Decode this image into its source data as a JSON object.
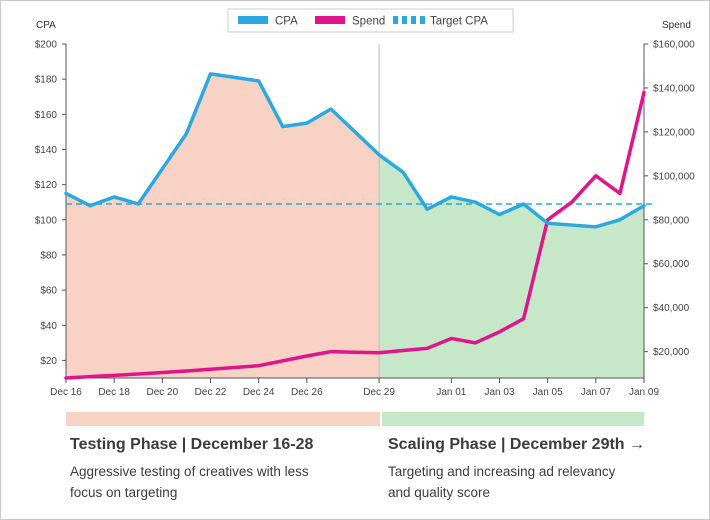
{
  "chart_data": {
    "type": "line",
    "left_axis_label": "CPA",
    "right_axis_label": "Spend",
    "legend": [
      {
        "name": "CPA",
        "color": "#2ba8e0",
        "style": "solid"
      },
      {
        "name": "Spend",
        "color": "#e0148c",
        "style": "solid"
      },
      {
        "name": "Target CPA",
        "color": "#2ba8e0",
        "style": "dashed"
      }
    ],
    "x_ticks": [
      "Dec 16",
      "Dec 18",
      "Dec 20",
      "Dec 22",
      "Dec 24",
      "Dec 26",
      "Dec 29",
      "Jan 01",
      "Jan 03",
      "Jan 05",
      "Jan 07",
      "Jan 09"
    ],
    "y_left_ticks": [
      "$20",
      "$40",
      "$60",
      "$80",
      "$100",
      "$120",
      "$140",
      "$160",
      "$180",
      "$200"
    ],
    "y_right_ticks": [
      "$20,000",
      "$40,000",
      "$60,000",
      "$80,000",
      "$100,000",
      "$120,000",
      "$140,000",
      "$160,000"
    ],
    "y_left_range": [
      10,
      200
    ],
    "y_right_range": [
      8000,
      160000
    ],
    "target_cpa": 109,
    "dates": [
      "Dec 16",
      "Dec 17",
      "Dec 18",
      "Dec 19",
      "Dec 20",
      "Dec 21",
      "Dec 22",
      "Dec 23",
      "Dec 24",
      "Dec 25",
      "Dec 26",
      "Dec 27",
      "Dec 28",
      "Dec 29",
      "Dec 30",
      "Dec 31",
      "Jan 01",
      "Jan 02",
      "Jan 03",
      "Jan 04",
      "Jan 05",
      "Jan 06",
      "Jan 07",
      "Jan 08",
      "Jan 09"
    ],
    "series": [
      {
        "name": "CPA",
        "axis": "left",
        "color": "#2ba8e0",
        "values": [
          115,
          108,
          113,
          109,
          129,
          149,
          183,
          181,
          179,
          153,
          155,
          163,
          150,
          137,
          127,
          106,
          113,
          110,
          103,
          109,
          98,
          97,
          96,
          100,
          108
        ]
      },
      {
        "name": "Spend",
        "axis": "right",
        "color": "#e0148c",
        "values": [
          8000,
          8600,
          9200,
          9800,
          10500,
          11200,
          12000,
          12800,
          13600,
          15800,
          18000,
          20000,
          19700,
          19500,
          20500,
          21500,
          26000,
          24000,
          29000,
          35000,
          80000,
          88000,
          100000,
          92000,
          138000
        ]
      }
    ],
    "phases": [
      {
        "start": "Dec 16",
        "end": "Dec 29",
        "color": "#f8d2c4"
      },
      {
        "start": "Dec 29",
        "end": "Jan 09",
        "color": "#c6e8c8"
      }
    ]
  },
  "phases_text": {
    "testing": {
      "title": "Testing Phase | December 16-28",
      "description": "Aggressive testing of creatives with less focus on targeting",
      "color": "#f8d2c4"
    },
    "scaling": {
      "title": "Scaling Phase | December 29th →",
      "description": "Targeting and increasing ad relevancy and quality score",
      "color": "#c6e8c8"
    }
  }
}
